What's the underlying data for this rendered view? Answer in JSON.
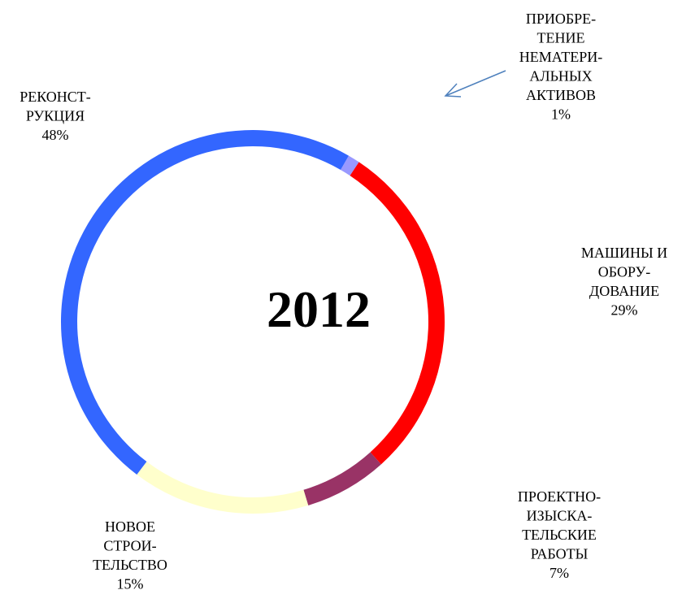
{
  "chart_data": {
    "type": "pie",
    "title": "2012",
    "slices": [
      {
        "label_lines": [
          "ПРИОБРЕ-",
          "ТЕНИЕ",
          "НЕМАТЕРИ-",
          "АЛЬНЫХ",
          "АКТИВОВ"
        ],
        "percent_label": "1%",
        "value": 1,
        "color": "#9999FF"
      },
      {
        "label_lines": [
          "МАШИНЫ И",
          "ОБОРУ-",
          "ДОВАНИЕ"
        ],
        "percent_label": "29%",
        "value": 29,
        "color": "#FF0000"
      },
      {
        "label_lines": [
          "ПРОЕКТНО-",
          "ИЗЫСКА-",
          "ТЕЛЬСКИЕ",
          "РАБОТЫ"
        ],
        "percent_label": "7%",
        "value": 7,
        "color": "#993366"
      },
      {
        "label_lines": [
          "НОВОЕ",
          "СТРОИ-",
          "ТЕЛЬСТВО"
        ],
        "percent_label": "15%",
        "value": 15,
        "color": "#FFFFCC"
      },
      {
        "label_lines": [
          "РЕКОНСТ-",
          "РУКЦИЯ"
        ],
        "percent_label": "48%",
        "value": 48,
        "color": "#3366FF"
      }
    ]
  }
}
